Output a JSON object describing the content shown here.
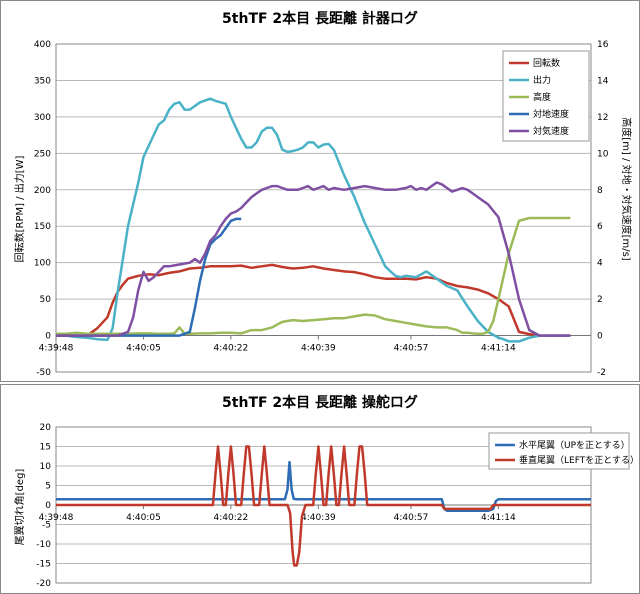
{
  "chart_data": [
    {
      "type": "line",
      "title": "5thTF 2本目 長距離 計器ログ",
      "ylabel": "回転数[RPM] / 出力[W]",
      "y2label": "高度[m] / 対地・対気速度[m/s]",
      "xlim": [
        0,
        104
      ],
      "ylim": [
        -50,
        400
      ],
      "y2lim": [
        -2,
        16
      ],
      "yticks": [
        -50,
        0,
        50,
        100,
        150,
        200,
        250,
        300,
        350,
        400
      ],
      "y2ticks": [
        -2,
        0,
        2,
        4,
        6,
        8,
        10,
        12,
        14,
        16
      ],
      "xtick_values": [
        0,
        17,
        34,
        51,
        69,
        86
      ],
      "xtick_labels": [
        "4:39:48",
        "4:40:05",
        "4:40:22",
        "4:40:39",
        "4:40:57",
        "4:41:14"
      ],
      "grid": "horizontal",
      "legend_position": "top-right",
      "series": [
        {
          "name": "回転数",
          "color": "#c0392b",
          "axis": "left",
          "x": [
            0,
            6,
            8,
            10,
            11,
            12,
            13,
            14,
            16,
            18,
            20,
            22,
            24,
            26,
            28,
            30,
            32,
            34,
            36,
            38,
            40,
            42,
            44,
            46,
            48,
            50,
            52,
            54,
            56,
            58,
            60,
            62,
            64,
            66,
            68,
            70,
            72,
            74,
            76,
            78,
            80,
            82,
            84,
            86,
            88,
            90,
            92,
            94,
            100
          ],
          "y": [
            0,
            0,
            10,
            25,
            45,
            60,
            70,
            78,
            82,
            84,
            83,
            86,
            88,
            92,
            93,
            95,
            95,
            95,
            96,
            93,
            95,
            97,
            94,
            92,
            93,
            95,
            92,
            90,
            88,
            87,
            84,
            80,
            78,
            78,
            78,
            77,
            80,
            78,
            72,
            68,
            66,
            63,
            58,
            50,
            40,
            5,
            2,
            0,
            0
          ]
        },
        {
          "name": "出力",
          "color": "#4ab2c6",
          "axis": "left",
          "x": [
            0,
            2,
            4,
            6,
            8,
            10,
            11,
            12,
            14,
            16,
            17,
            18,
            19,
            20,
            21,
            22,
            23,
            24,
            25,
            26,
            28,
            30,
            31,
            32,
            33,
            34,
            35,
            36,
            37,
            38,
            39,
            40,
            41,
            42,
            43,
            44,
            45,
            46,
            47,
            48,
            49,
            50,
            51,
            52,
            53,
            54,
            56,
            58,
            60,
            62,
            63,
            64,
            65,
            66,
            67,
            68,
            70,
            72,
            74,
            76,
            78,
            80,
            82,
            84,
            86,
            87,
            88,
            90,
            92,
            94,
            100
          ],
          "y": [
            0,
            0,
            -2,
            -3,
            -5,
            -6,
            10,
            60,
            150,
            210,
            245,
            260,
            275,
            290,
            295,
            310,
            318,
            320,
            310,
            310,
            320,
            325,
            322,
            320,
            318,
            300,
            285,
            270,
            258,
            258,
            265,
            280,
            285,
            285,
            275,
            255,
            252,
            253,
            255,
            258,
            265,
            265,
            258,
            262,
            263,
            255,
            220,
            190,
            155,
            125,
            110,
            95,
            88,
            82,
            80,
            82,
            80,
            88,
            78,
            68,
            62,
            40,
            20,
            5,
            -3,
            -5,
            -8,
            -8,
            -3,
            0,
            0
          ]
        },
        {
          "name": "高度",
          "color": "#9bbb59",
          "axis": "right",
          "x": [
            0,
            2,
            4,
            6,
            8,
            10,
            12,
            14,
            16,
            18,
            20,
            22,
            23,
            24,
            25,
            26,
            28,
            30,
            32,
            34,
            36,
            38,
            40,
            42,
            44,
            46,
            48,
            50,
            52,
            54,
            56,
            58,
            60,
            62,
            64,
            66,
            68,
            70,
            72,
            74,
            76,
            78,
            79,
            80,
            81,
            82,
            83,
            84,
            85,
            86,
            88,
            90,
            92,
            94,
            96,
            100
          ],
          "y": [
            0.1,
            0.1,
            0.15,
            0.1,
            0.1,
            0.1,
            0.1,
            0.1,
            0.12,
            0.12,
            0.1,
            0.1,
            0.12,
            0.45,
            0.1,
            0.1,
            0.12,
            0.12,
            0.15,
            0.15,
            0.12,
            0.3,
            0.3,
            0.45,
            0.75,
            0.85,
            0.8,
            0.85,
            0.9,
            0.95,
            0.95,
            1.05,
            1.15,
            1.1,
            0.9,
            0.8,
            0.7,
            0.6,
            0.5,
            0.45,
            0.45,
            0.3,
            0.15,
            0.15,
            0.12,
            0.1,
            0.1,
            0.2,
            0.8,
            2.0,
            4.5,
            6.3,
            6.45,
            6.45,
            6.45,
            6.45
          ]
        },
        {
          "name": "対地速度",
          "color": "#2e6cb5",
          "axis": "right",
          "x": [
            0,
            10,
            20,
            22,
            24,
            26,
            27,
            28,
            29,
            30,
            31,
            32,
            33,
            34,
            35,
            36
          ],
          "y": [
            0,
            0,
            0,
            0,
            0,
            0.2,
            1.5,
            3.0,
            4.2,
            5.0,
            5.3,
            5.5,
            5.9,
            6.3,
            6.4,
            6.4
          ]
        },
        {
          "name": "対気速度",
          "color": "#7f4fa2",
          "axis": "right",
          "x": [
            0,
            4,
            8,
            10,
            12,
            14,
            15,
            16,
            17,
            18,
            19,
            20,
            21,
            22,
            24,
            26,
            27,
            28,
            29,
            30,
            31,
            32,
            33,
            34,
            35,
            36,
            37,
            38,
            39,
            40,
            41,
            42,
            43,
            44,
            45,
            46,
            47,
            48,
            49,
            50,
            51,
            52,
            53,
            54,
            56,
            58,
            60,
            62,
            64,
            66,
            68,
            69,
            70,
            71,
            72,
            73,
            74,
            75,
            76,
            77,
            78,
            79,
            80,
            81,
            82,
            84,
            86,
            88,
            90,
            92,
            94,
            96,
            100
          ],
          "y": [
            0,
            0,
            0,
            0,
            0,
            0.2,
            1.0,
            2.5,
            3.5,
            3.0,
            3.2,
            3.5,
            3.8,
            3.8,
            3.9,
            4.0,
            4.2,
            4.0,
            4.5,
            5.2,
            5.5,
            6.0,
            6.4,
            6.7,
            6.8,
            7.0,
            7.3,
            7.6,
            7.8,
            8.0,
            8.1,
            8.2,
            8.2,
            8.1,
            8.0,
            8.0,
            8.0,
            8.1,
            8.2,
            8.0,
            8.1,
            8.2,
            8.0,
            8.1,
            8.0,
            8.1,
            8.2,
            8.1,
            8.0,
            8.0,
            8.1,
            8.2,
            8.0,
            8.1,
            8.0,
            8.2,
            8.4,
            8.3,
            8.1,
            7.9,
            8.0,
            8.1,
            8.0,
            7.8,
            7.6,
            7.2,
            6.5,
            4.5,
            2.0,
            0.3,
            0,
            0,
            0
          ]
        }
      ]
    },
    {
      "type": "line",
      "title": "5thTF 2本目 長距離 操舵ログ",
      "ylabel": "尾翼切れ角[deg]",
      "xlim": [
        0,
        104
      ],
      "ylim": [
        -20,
        20
      ],
      "yticks": [
        -20,
        -15,
        -10,
        -5,
        0,
        5,
        10,
        15,
        20
      ],
      "xtick_values": [
        0,
        17,
        34,
        51,
        69,
        86
      ],
      "xtick_labels": [
        "4:39:48",
        "4:40:05",
        "4:40:22",
        "4:40:39",
        "4:40:57",
        "4:41:14"
      ],
      "grid": "horizontal",
      "legend_position": "top-right",
      "series": [
        {
          "name": "水平尾翼（UPを正とする）",
          "color": "#2e6cb5",
          "x": [
            0,
            30,
            44.5,
            45,
            45.4,
            45.8,
            46.2,
            46.6,
            47,
            60,
            74,
            75,
            75.5,
            76,
            77,
            84,
            85,
            85.5,
            86,
            104
          ],
          "y": [
            1.5,
            1.5,
            1.5,
            4,
            11,
            4,
            1.6,
            1.5,
            1.5,
            1.5,
            1.5,
            1.5,
            -1,
            -1.5,
            -1.5,
            -1.5,
            -1,
            1,
            1.5,
            1.5
          ]
        },
        {
          "name": "垂直尾翼（LEFTを正とする）",
          "color": "#c0392b",
          "x": [
            0,
            30.5,
            31,
            31.5,
            32,
            32.5,
            33,
            33.5,
            34,
            34.5,
            35,
            35.5,
            36,
            36.5,
            37,
            37.5,
            38,
            38.5,
            39,
            39.5,
            40,
            40.5,
            41,
            41.5,
            42,
            42.5,
            43,
            43.5,
            44,
            44.5,
            45,
            45.5,
            46,
            46.3,
            46.8,
            47.3,
            47.8,
            48.5,
            50,
            50.5,
            51,
            51.5,
            52,
            52.5,
            53,
            53.5,
            54,
            54.5,
            55,
            55.5,
            56,
            56.5,
            57,
            57.5,
            58,
            58.5,
            59,
            59.5,
            60,
            60.5,
            61,
            61.5,
            62,
            62.5,
            63,
            75,
            75.5,
            76,
            84,
            84.5,
            85,
            104
          ],
          "y": [
            0,
            0,
            8,
            15,
            8,
            0,
            0,
            8,
            15,
            8,
            0,
            0,
            0,
            8,
            15,
            15,
            8,
            0,
            0,
            0,
            8,
            15,
            8,
            0,
            0,
            0,
            0,
            0,
            0,
            0,
            0,
            -2,
            -12,
            -15.5,
            -15.5,
            -12,
            -3,
            0,
            0,
            8,
            15,
            8,
            0,
            0,
            8,
            15,
            8,
            0,
            0,
            8,
            15,
            8,
            0,
            0,
            0,
            8,
            15,
            15,
            8,
            0,
            0,
            0,
            0,
            0,
            0,
            0,
            -1,
            -1,
            -1,
            -1,
            0,
            0
          ]
        }
      ]
    }
  ]
}
